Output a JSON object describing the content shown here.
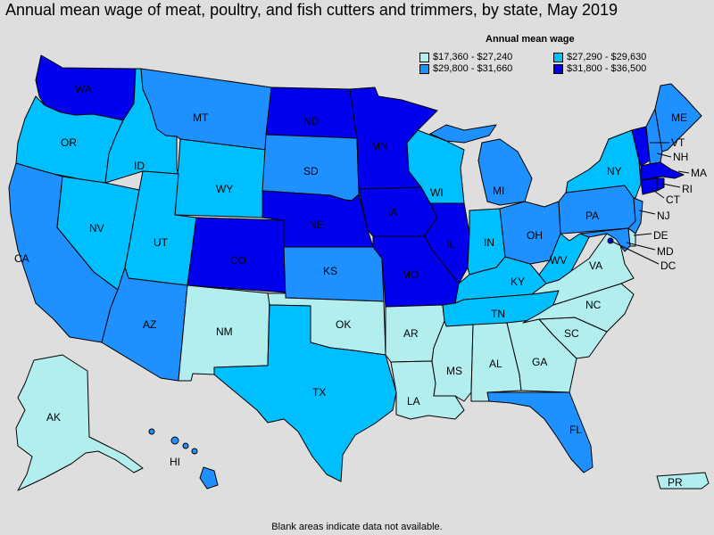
{
  "title": "Annual mean wage of meat, poultry, and fish cutters and trimmers, by state, May 2019",
  "legend": {
    "title": "Annual mean wage",
    "items": [
      {
        "label": "$17,360 - $27,240",
        "color": "#b2eeee"
      },
      {
        "label": "$27,290 - $29,630",
        "color": "#00bfff"
      },
      {
        "label": "$29,800 - $31,660",
        "color": "#1e90ff"
      },
      {
        "label": "$31,800 - $36,500",
        "color": "#0000ee"
      }
    ]
  },
  "colors": {
    "c1": "#b2eeee",
    "c2": "#00bfff",
    "c3": "#1e90ff",
    "c4": "#0000ee"
  },
  "states": {
    "WA": {
      "label": "WA",
      "tier": "c4"
    },
    "OR": {
      "label": "OR",
      "tier": "c2"
    },
    "CA": {
      "label": "CA",
      "tier": "c3"
    },
    "ID": {
      "label": "ID",
      "tier": "c2"
    },
    "NV": {
      "label": "NV",
      "tier": "c2"
    },
    "MT": {
      "label": "MT",
      "tier": "c3"
    },
    "WY": {
      "label": "WY",
      "tier": "c2"
    },
    "UT": {
      "label": "UT",
      "tier": "c2"
    },
    "AZ": {
      "label": "AZ",
      "tier": "c3"
    },
    "CO": {
      "label": "CO",
      "tier": "c4"
    },
    "NM": {
      "label": "NM",
      "tier": "c1"
    },
    "ND": {
      "label": "ND",
      "tier": "c4"
    },
    "SD": {
      "label": "SD",
      "tier": "c3"
    },
    "NE": {
      "label": "NE",
      "tier": "c4"
    },
    "KS": {
      "label": "KS",
      "tier": "c3"
    },
    "OK": {
      "label": "OK",
      "tier": "c1"
    },
    "TX": {
      "label": "TX",
      "tier": "c2"
    },
    "MN": {
      "label": "MN",
      "tier": "c4"
    },
    "IA": {
      "label": "IA",
      "tier": "c4"
    },
    "MO": {
      "label": "MO",
      "tier": "c4"
    },
    "AR": {
      "label": "AR",
      "tier": "c1"
    },
    "LA": {
      "label": "LA",
      "tier": "c1"
    },
    "WI": {
      "label": "WI",
      "tier": "c2"
    },
    "IL": {
      "label": "IL",
      "tier": "c4"
    },
    "MI": {
      "label": "MI",
      "tier": "c3"
    },
    "IN": {
      "label": "IN",
      "tier": "c2"
    },
    "OH": {
      "label": "OH",
      "tier": "c3"
    },
    "KY": {
      "label": "KY",
      "tier": "c2"
    },
    "TN": {
      "label": "TN",
      "tier": "c2"
    },
    "MS": {
      "label": "MS",
      "tier": "c1"
    },
    "AL": {
      "label": "AL",
      "tier": "c1"
    },
    "GA": {
      "label": "GA",
      "tier": "c1"
    },
    "FL": {
      "label": "FL",
      "tier": "c3"
    },
    "SC": {
      "label": "SC",
      "tier": "c1"
    },
    "NC": {
      "label": "NC",
      "tier": "c1"
    },
    "VA": {
      "label": "VA",
      "tier": "c1"
    },
    "WV": {
      "label": "WV",
      "tier": "c2"
    },
    "PA": {
      "label": "PA",
      "tier": "c3"
    },
    "NY": {
      "label": "NY",
      "tier": "c2"
    },
    "VT": {
      "label": "VT",
      "tier": "c4"
    },
    "NH": {
      "label": "NH",
      "tier": "c3"
    },
    "ME": {
      "label": "ME",
      "tier": "c3"
    },
    "MA": {
      "label": "MA",
      "tier": "c4"
    },
    "RI": {
      "label": "RI",
      "tier": "c4"
    },
    "CT": {
      "label": "CT",
      "tier": "c4"
    },
    "NJ": {
      "label": "NJ",
      "tier": "c3"
    },
    "DE": {
      "label": "DE",
      "tier": "c1"
    },
    "MD": {
      "label": "MD",
      "tier": "c3"
    },
    "DC": {
      "label": "DC",
      "tier": "c4"
    },
    "AK": {
      "label": "AK",
      "tier": "c1"
    },
    "HI": {
      "label": "HI",
      "tier": "c3"
    },
    "PR": {
      "label": "PR",
      "tier": "c1"
    }
  },
  "footnote": "Blank areas indicate data not available."
}
